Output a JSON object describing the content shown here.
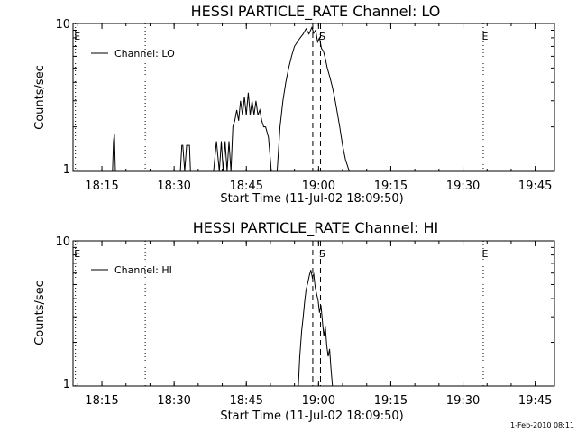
{
  "footer_timestamp": "1-Feb-2010 08:11",
  "chart_data": [
    {
      "type": "line",
      "title": "HESSI PARTICLE_RATE Channel: LO",
      "xlabel": "Start Time (11-Jul-02 18:09:50)",
      "ylabel": "Counts/sec",
      "yscale": "log",
      "ylim": [
        1,
        10
      ],
      "y_ticks": [
        "1",
        "10"
      ],
      "xlim_minutes_since_1809": [
        0,
        100
      ],
      "x_ticks": [
        {
          "label": "18:15",
          "min": 6
        },
        {
          "label": "18:30",
          "min": 21
        },
        {
          "label": "18:45",
          "min": 36
        },
        {
          "label": "19:00",
          "min": 51
        },
        {
          "label": "19:15",
          "min": 66
        },
        {
          "label": "19:30",
          "min": 81
        },
        {
          "label": "19:45",
          "min": 96
        }
      ],
      "legend": {
        "entry": "Channel: LO",
        "placement": "top-left"
      },
      "markers": [
        {
          "label": "E",
          "min": 0.5,
          "style": "dotted"
        },
        {
          "label": "",
          "min": 15,
          "style": "dotted"
        },
        {
          "label": "",
          "min": 49.8,
          "style": "dashed"
        },
        {
          "label": "S",
          "min": 51.4,
          "style": "dashed"
        },
        {
          "label": "E",
          "min": 85.2,
          "style": "dotted"
        },
        {
          "label": "",
          "min": 100,
          "style": "dotted"
        }
      ],
      "series": [
        {
          "name": "Channel: LO",
          "x": [
            8.2,
            8.4,
            8.6,
            8.8,
            13,
            22.3,
            22.6,
            22.8,
            23.2,
            23.6,
            24.2,
            24.4,
            24.6,
            25,
            28.5,
            29.2,
            29.8,
            30.4,
            30.8,
            31.2,
            31.6,
            32,
            32.4,
            32.8,
            33.2,
            33.6,
            34,
            34.4,
            34.8,
            35.2,
            35.6,
            36,
            36.4,
            36.8,
            37.2,
            37.6,
            38,
            38.4,
            38.8,
            39.2,
            39.6,
            40,
            40.6,
            41.2,
            42.4,
            43,
            43.6,
            44.2,
            44.8,
            45.4,
            46,
            46.6,
            47.2,
            47.8,
            48.4,
            49,
            49.6,
            50,
            50.4,
            50.8,
            51.2,
            51.6,
            52,
            52.4,
            52.8,
            53.3,
            53.8,
            54.3,
            54.8,
            55.4,
            56,
            56.6,
            57.4,
            58,
            58.2
          ],
          "y": [
            1,
            1.6,
            1.8,
            1,
            1,
            1,
            1.5,
            1.5,
            1,
            1.5,
            1.5,
            1,
            1,
            1,
            1,
            1,
            1.6,
            1,
            1.6,
            1,
            1.6,
            1,
            1.6,
            1,
            2,
            2.2,
            2.6,
            2.2,
            3,
            2.4,
            3.2,
            2.4,
            3.4,
            2.4,
            3,
            2.4,
            3,
            2.4,
            2.6,
            2.2,
            2,
            2,
            1.7,
            1,
            1,
            2,
            3,
            4,
            5,
            6,
            7,
            7.5,
            8,
            8.5,
            9.2,
            8.5,
            9.4,
            8.6,
            9,
            7.5,
            8,
            6.8,
            6.5,
            5.8,
            5,
            4.4,
            3.8,
            3.2,
            2.6,
            2,
            1.5,
            1.2,
            1,
            1,
            1
          ]
        }
      ]
    },
    {
      "type": "line",
      "title": "HESSI PARTICLE_RATE Channel: HI",
      "xlabel": "Start Time (11-Jul-02 18:09:50)",
      "ylabel": "Counts/sec",
      "yscale": "log",
      "ylim": [
        1,
        10
      ],
      "y_ticks": [
        "1",
        "10"
      ],
      "xlim_minutes_since_1809": [
        0,
        100
      ],
      "x_ticks": [
        {
          "label": "18:15",
          "min": 6
        },
        {
          "label": "18:30",
          "min": 21
        },
        {
          "label": "18:45",
          "min": 36
        },
        {
          "label": "19:00",
          "min": 51
        },
        {
          "label": "19:15",
          "min": 66
        },
        {
          "label": "19:30",
          "min": 81
        },
        {
          "label": "19:45",
          "min": 96
        }
      ],
      "legend": {
        "entry": "Channel: HI",
        "placement": "top-left"
      },
      "markers": [
        {
          "label": "E",
          "min": 0.5,
          "style": "dotted"
        },
        {
          "label": "",
          "min": 15,
          "style": "dotted"
        },
        {
          "label": "",
          "min": 49.8,
          "style": "dashed"
        },
        {
          "label": "S",
          "min": 51.4,
          "style": "dashed"
        },
        {
          "label": "E",
          "min": 85.2,
          "style": "dotted"
        },
        {
          "label": "",
          "min": 100,
          "style": "dotted"
        }
      ],
      "series": [
        {
          "name": "Channel: HI",
          "x": [
            46.8,
            47.1,
            47.5,
            47.8,
            48.1,
            48.4,
            48.8,
            49.1,
            49.4,
            49.7,
            50,
            50.3,
            50.6,
            50.9,
            51.2,
            51.5,
            51.8,
            52.1,
            52.4,
            52.7,
            53,
            53.3,
            53.6,
            53.9
          ],
          "y": [
            1,
            1.6,
            2.4,
            3,
            3.8,
            4.6,
            5.2,
            5.8,
            6.3,
            5.6,
            5.9,
            4.8,
            4.3,
            3.9,
            3.2,
            3.6,
            2.8,
            2.2,
            2.6,
            1.9,
            1.6,
            1.8,
            1.3,
            1
          ]
        }
      ]
    }
  ]
}
